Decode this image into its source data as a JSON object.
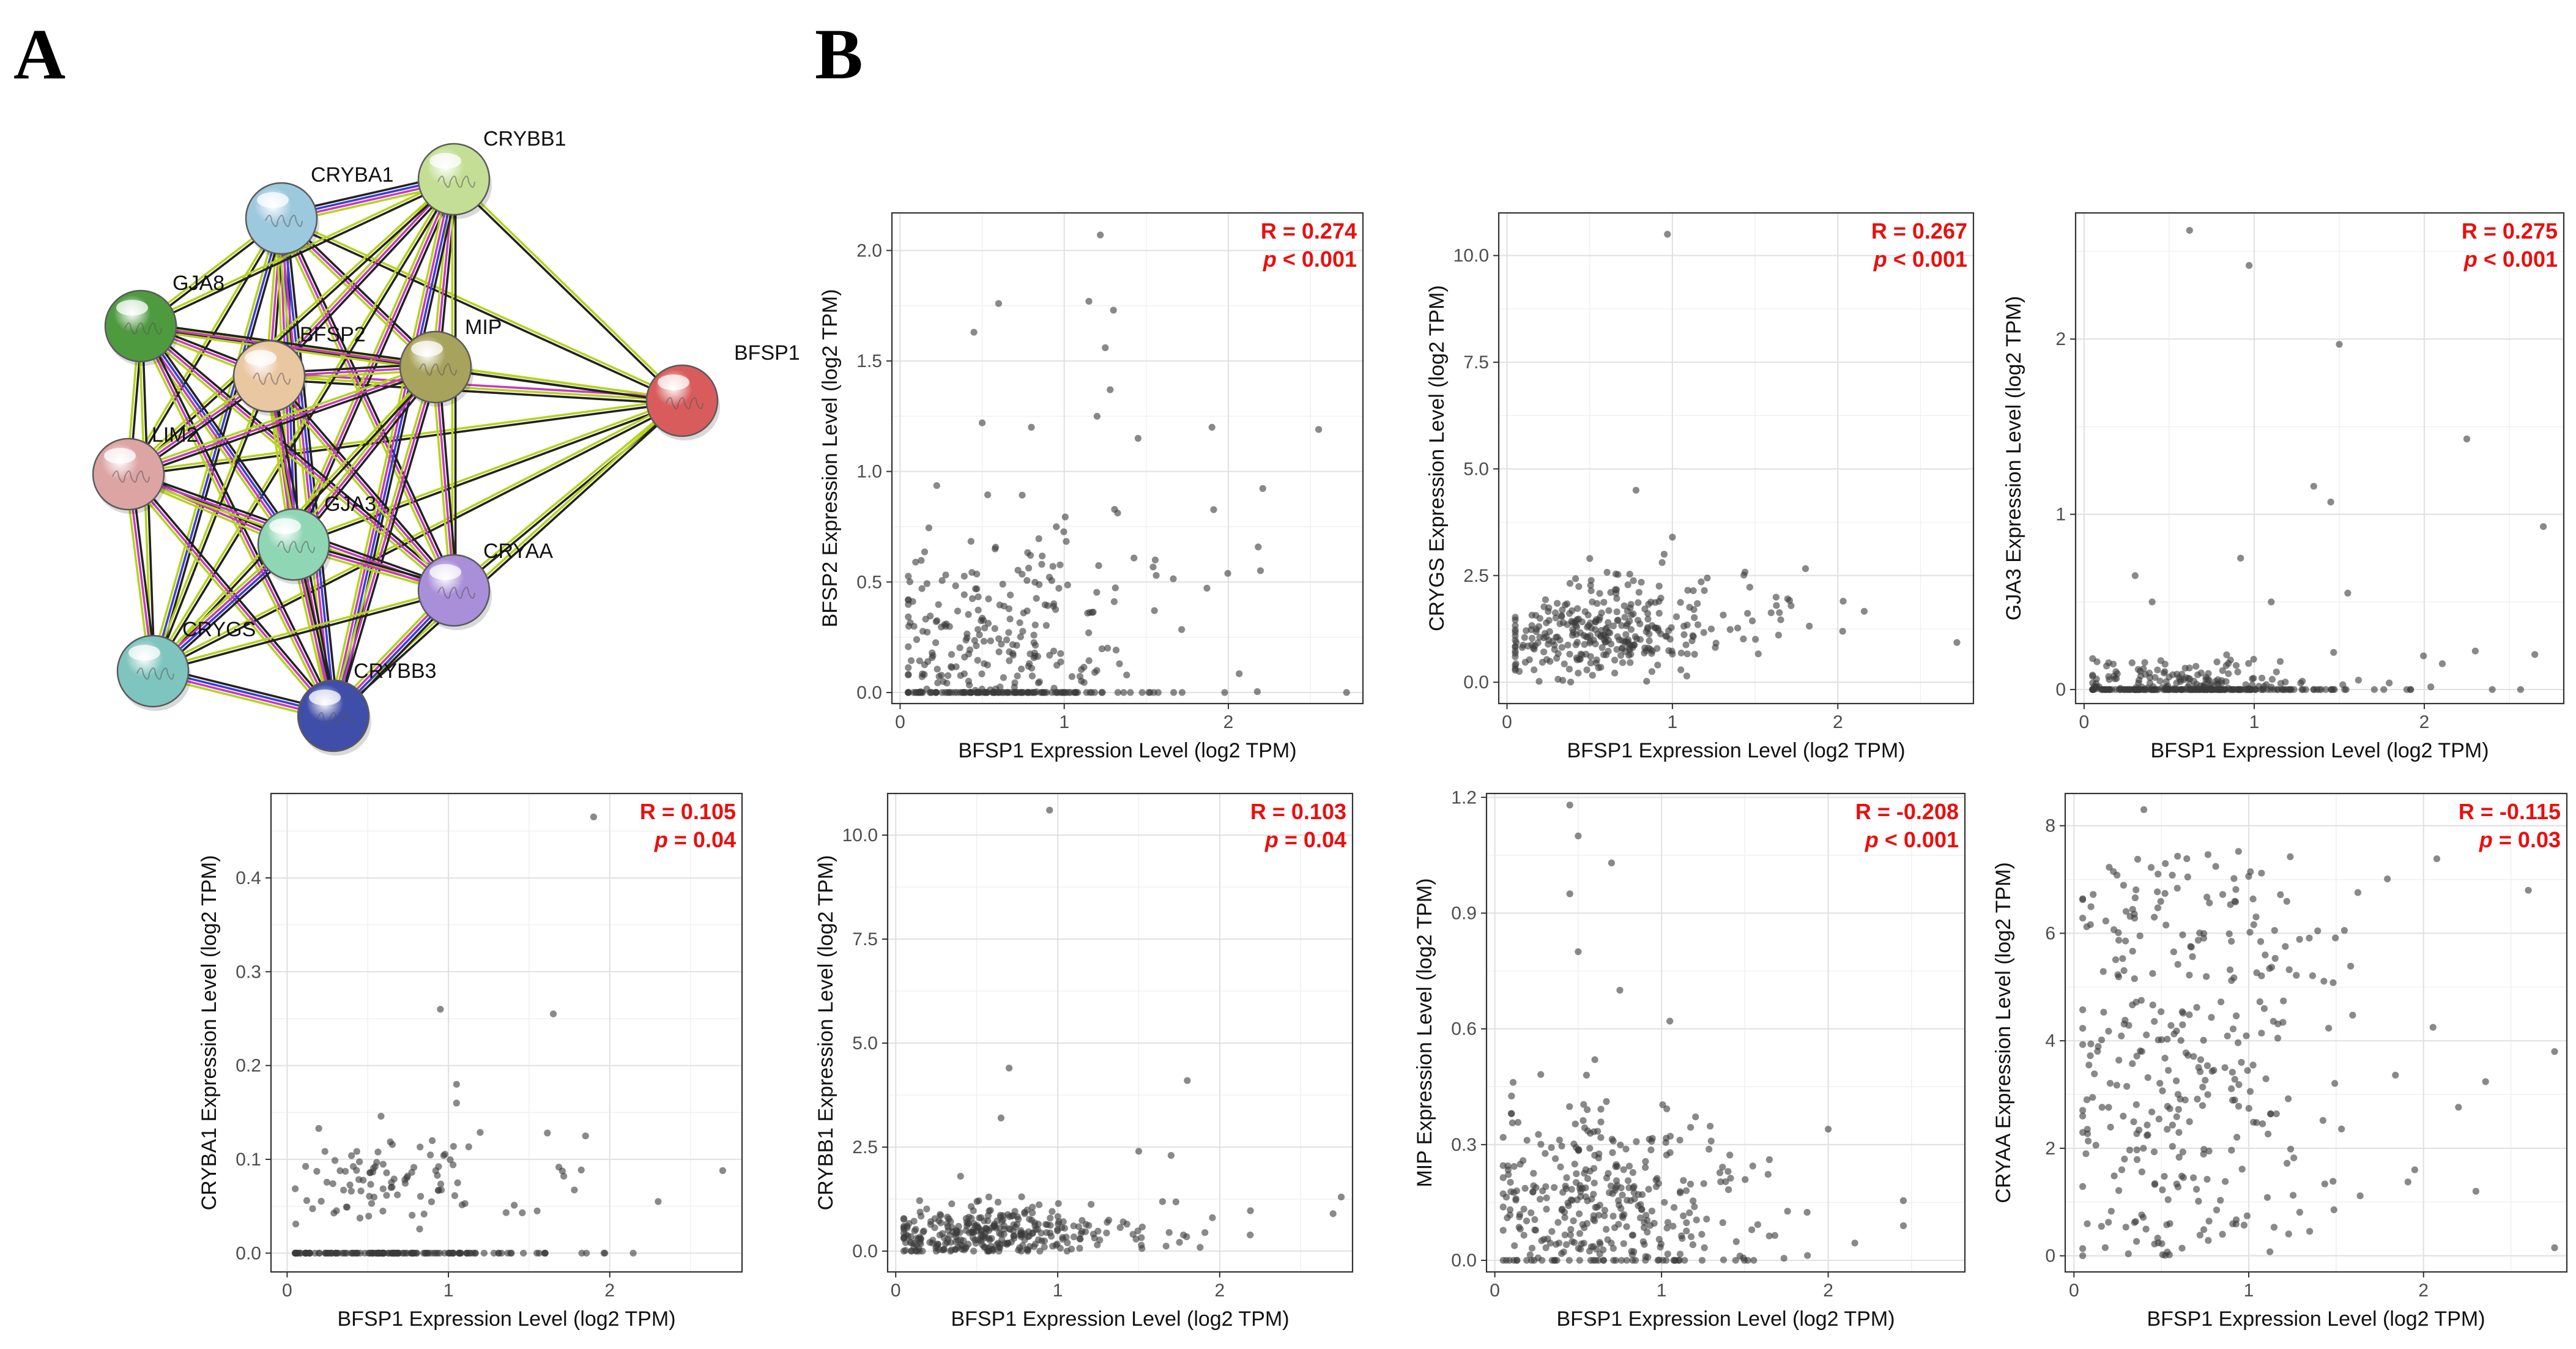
{
  "panels": {
    "a": "A",
    "b": "B"
  },
  "network": {
    "nodes": [
      {
        "id": "CRYBB1",
        "color": "#c4df95"
      },
      {
        "id": "CRYBA1",
        "color": "#9cc9de"
      },
      {
        "id": "GJA8",
        "color": "#4e9a3f"
      },
      {
        "id": "BFSP2",
        "color": "#e9c7a1"
      },
      {
        "id": "MIP",
        "color": "#a8a35c"
      },
      {
        "id": "BFSP1",
        "color": "#d95c5c"
      },
      {
        "id": "LIM2",
        "color": "#dda4a4"
      },
      {
        "id": "GJA3",
        "color": "#8fd6b5"
      },
      {
        "id": "CRYAA",
        "color": "#a98fd9"
      },
      {
        "id": "CRYGS",
        "color": "#7fc5bf"
      },
      {
        "id": "CRYBB3",
        "color": "#3f4ea8"
      }
    ],
    "edges": [
      {
        "s": "BFSP1",
        "t": "CRYBB1",
        "colors": [
          "#222222",
          "#b5d31c"
        ]
      },
      {
        "s": "BFSP1",
        "t": "CRYBA1",
        "colors": [
          "#222222",
          "#b5d31c"
        ]
      },
      {
        "s": "BFSP1",
        "t": "GJA8",
        "colors": [
          "#222222",
          "#b5d31c"
        ]
      },
      {
        "s": "BFSP1",
        "t": "BFSP2",
        "colors": [
          "#222222",
          "#b5d31c",
          "#c23ebf"
        ]
      },
      {
        "s": "BFSP1",
        "t": "MIP",
        "colors": [
          "#222222",
          "#b5d31c"
        ]
      },
      {
        "s": "BFSP1",
        "t": "LIM2",
        "colors": [
          "#222222",
          "#b5d31c"
        ]
      },
      {
        "s": "BFSP1",
        "t": "GJA3",
        "colors": [
          "#222222",
          "#b5d31c"
        ]
      },
      {
        "s": "BFSP1",
        "t": "CRYAA",
        "colors": [
          "#222222",
          "#b5d31c"
        ]
      },
      {
        "s": "BFSP1",
        "t": "CRYGS",
        "colors": [
          "#222222",
          "#b5d31c"
        ]
      },
      {
        "s": "BFSP1",
        "t": "CRYBB3",
        "colors": [
          "#222222",
          "#b5d31c"
        ]
      },
      {
        "s": "CRYBA1",
        "t": "CRYBB1",
        "colors": [
          "#222222",
          "#3d3dd6",
          "#c23ebf",
          "#b5d31c"
        ]
      },
      {
        "s": "CRYBA1",
        "t": "GJA8",
        "colors": [
          "#222222",
          "#b5d31c"
        ]
      },
      {
        "s": "CRYBA1",
        "t": "BFSP2",
        "colors": [
          "#222222",
          "#c23ebf",
          "#b5d31c"
        ]
      },
      {
        "s": "CRYBA1",
        "t": "MIP",
        "colors": [
          "#222222",
          "#c23ebf",
          "#b5d31c"
        ]
      },
      {
        "s": "CRYBA1",
        "t": "LIM2",
        "colors": [
          "#222222",
          "#b5d31c"
        ]
      },
      {
        "s": "CRYBA1",
        "t": "GJA3",
        "colors": [
          "#222222",
          "#3d3dd6",
          "#c23ebf",
          "#b5d31c"
        ]
      },
      {
        "s": "CRYBA1",
        "t": "CRYAA",
        "colors": [
          "#222222",
          "#c23ebf",
          "#b5d31c"
        ]
      },
      {
        "s": "CRYBA1",
        "t": "CRYGS",
        "colors": [
          "#222222",
          "#3d3dd6",
          "#b5d31c"
        ]
      },
      {
        "s": "CRYBA1",
        "t": "CRYBB3",
        "colors": [
          "#222222",
          "#3d3dd6",
          "#c23ebf",
          "#b5d31c"
        ]
      },
      {
        "s": "CRYBB1",
        "t": "GJA8",
        "colors": [
          "#222222",
          "#b5d31c"
        ]
      },
      {
        "s": "CRYBB1",
        "t": "BFSP2",
        "colors": [
          "#222222",
          "#c23ebf",
          "#b5d31c"
        ]
      },
      {
        "s": "CRYBB1",
        "t": "MIP",
        "colors": [
          "#222222",
          "#c23ebf",
          "#b5d31c"
        ]
      },
      {
        "s": "CRYBB1",
        "t": "LIM2",
        "colors": [
          "#222222",
          "#b5d31c"
        ]
      },
      {
        "s": "CRYBB1",
        "t": "GJA3",
        "colors": [
          "#222222",
          "#c23ebf",
          "#b5d31c"
        ]
      },
      {
        "s": "CRYBB1",
        "t": "CRYAA",
        "colors": [
          "#222222",
          "#b5d31c"
        ]
      },
      {
        "s": "CRYBB1",
        "t": "CRYGS",
        "colors": [
          "#222222",
          "#b5d31c"
        ]
      },
      {
        "s": "CRYBB1",
        "t": "CRYBB3",
        "colors": [
          "#222222",
          "#3d3dd6",
          "#c23ebf",
          "#b5d31c"
        ]
      },
      {
        "s": "GJA8",
        "t": "BFSP2",
        "colors": [
          "#222222",
          "#c23ebf",
          "#b5d31c"
        ]
      },
      {
        "s": "GJA8",
        "t": "MIP",
        "colors": [
          "#222222",
          "#c23ebf",
          "#b5d31c"
        ]
      },
      {
        "s": "GJA8",
        "t": "LIM2",
        "colors": [
          "#222222",
          "#b5d31c"
        ]
      },
      {
        "s": "GJA8",
        "t": "GJA3",
        "colors": [
          "#222222",
          "#3d3dd6",
          "#c23ebf",
          "#b5d31c"
        ]
      },
      {
        "s": "GJA8",
        "t": "CRYAA",
        "colors": [
          "#222222",
          "#c23ebf",
          "#b5d31c"
        ]
      },
      {
        "s": "GJA8",
        "t": "CRYGS",
        "colors": [
          "#222222",
          "#b5d31c"
        ]
      },
      {
        "s": "GJA8",
        "t": "CRYBB3",
        "colors": [
          "#222222",
          "#c23ebf",
          "#b5d31c"
        ]
      },
      {
        "s": "BFSP2",
        "t": "MIP",
        "colors": [
          "#222222",
          "#c23ebf",
          "#b5d31c"
        ]
      },
      {
        "s": "BFSP2",
        "t": "LIM2",
        "colors": [
          "#222222",
          "#c23ebf",
          "#b5d31c"
        ]
      },
      {
        "s": "BFSP2",
        "t": "GJA3",
        "colors": [
          "#222222",
          "#c23ebf",
          "#b5d31c"
        ]
      },
      {
        "s": "BFSP2",
        "t": "CRYAA",
        "colors": [
          "#222222",
          "#c23ebf",
          "#b5d31c"
        ]
      },
      {
        "s": "BFSP2",
        "t": "CRYGS",
        "colors": [
          "#222222",
          "#b5d31c"
        ]
      },
      {
        "s": "BFSP2",
        "t": "CRYBB3",
        "colors": [
          "#222222",
          "#c23ebf",
          "#b5d31c"
        ]
      },
      {
        "s": "MIP",
        "t": "LIM2",
        "colors": [
          "#222222",
          "#c23ebf",
          "#b5d31c"
        ]
      },
      {
        "s": "MIP",
        "t": "GJA3",
        "colors": [
          "#222222",
          "#c23ebf",
          "#b5d31c"
        ]
      },
      {
        "s": "MIP",
        "t": "CRYAA",
        "colors": [
          "#222222",
          "#c23ebf",
          "#b5d31c"
        ]
      },
      {
        "s": "MIP",
        "t": "CRYGS",
        "colors": [
          "#222222",
          "#b5d31c"
        ]
      },
      {
        "s": "MIP",
        "t": "CRYBB3",
        "colors": [
          "#222222",
          "#c23ebf",
          "#b5d31c"
        ]
      },
      {
        "s": "LIM2",
        "t": "GJA3",
        "colors": [
          "#222222",
          "#c23ebf",
          "#b5d31c"
        ]
      },
      {
        "s": "LIM2",
        "t": "CRYAA",
        "colors": [
          "#222222",
          "#c23ebf",
          "#b5d31c"
        ]
      },
      {
        "s": "LIM2",
        "t": "CRYGS",
        "colors": [
          "#222222",
          "#c23ebf",
          "#b5d31c"
        ]
      },
      {
        "s": "LIM2",
        "t": "CRYBB3",
        "colors": [
          "#222222",
          "#c23ebf",
          "#b5d31c"
        ]
      },
      {
        "s": "GJA3",
        "t": "CRYAA",
        "colors": [
          "#222222",
          "#c23ebf",
          "#b5d31c"
        ]
      },
      {
        "s": "GJA3",
        "t": "CRYGS",
        "colors": [
          "#222222",
          "#3d3dd6",
          "#c23ebf",
          "#b5d31c"
        ]
      },
      {
        "s": "GJA3",
        "t": "CRYBB3",
        "colors": [
          "#222222",
          "#c23ebf",
          "#b5d31c"
        ]
      },
      {
        "s": "CRYAA",
        "t": "CRYGS",
        "colors": [
          "#222222",
          "#b5d31c"
        ]
      },
      {
        "s": "CRYAA",
        "t": "CRYBB3",
        "colors": [
          "#222222",
          "#3d3dd6",
          "#c23ebf",
          "#b5d31c"
        ]
      },
      {
        "s": "CRYGS",
        "t": "CRYBB3",
        "colors": [
          "#222222",
          "#3d3dd6",
          "#c23ebf",
          "#b5d31c"
        ]
      }
    ]
  },
  "chart_data": [
    {
      "type": "scatter",
      "xlabel": "BFSP1 Expression Level (log2 TPM)",
      "ylabel": "BFSP2 Expression Level (log2 TPM)",
      "xlim": [
        -0.05,
        2.82
      ],
      "ylim": [
        -0.05,
        2.17
      ],
      "xticks": [
        0,
        1,
        2
      ],
      "xtick_labels": [
        "0",
        "1",
        "2"
      ],
      "yticks": [
        0,
        0.5,
        1,
        1.5,
        2
      ],
      "ytick_labels": [
        "0.0",
        "0.5",
        "1.0",
        "1.5",
        "2.0"
      ],
      "annot_r": "R = 0.274",
      "annot_p": "p < 0.001",
      "p_letter": "p",
      "p_rest": " < 0.001",
      "corr": 0.274,
      "ydist": "zinf",
      "ymean": 0.25,
      "yspread": 0.3,
      "n": 360,
      "zero_frac": 0.35,
      "seed": 11,
      "extras": [
        [
          1.22,
          2.07
        ],
        [
          0.6,
          1.76
        ],
        [
          0.45,
          1.63
        ],
        [
          1.15,
          1.77
        ],
        [
          1.3,
          1.73
        ],
        [
          1.25,
          1.56
        ],
        [
          1.28,
          1.37
        ],
        [
          0.5,
          1.22
        ],
        [
          0.8,
          1.2
        ],
        [
          2.55,
          1.19
        ],
        [
          1.2,
          1.25
        ],
        [
          1.45,
          1.15
        ],
        [
          1.9,
          1.2
        ]
      ]
    },
    {
      "type": "scatter",
      "xlabel": "BFSP1 Expression Level (log2 TPM)",
      "ylabel": "CRYGS Expression Level (log2 TPM)",
      "xlim": [
        -0.05,
        2.82
      ],
      "ylim": [
        -0.5,
        11.0
      ],
      "xticks": [
        0,
        1,
        2
      ],
      "xtick_labels": [
        "0",
        "1",
        "2"
      ],
      "yticks": [
        0,
        2.5,
        5,
        7.5,
        10
      ],
      "ytick_labels": [
        "0.0",
        "2.5",
        "5.0",
        "7.5",
        "10.0"
      ],
      "annot_r": "R = 0.267",
      "annot_p": "p < 0.001",
      "p_letter": "p",
      "p_rest": " < 0.001",
      "corr": 0.267,
      "ydist": "normal",
      "ymean": 1.2,
      "yspread": 0.55,
      "n": 330,
      "zero_frac": 0,
      "seed": 23,
      "extras": [
        [
          0.97,
          10.5
        ],
        [
          0.78,
          4.5
        ],
        [
          1.0,
          3.4
        ],
        [
          0.5,
          2.9
        ],
        [
          0.95,
          3.0
        ]
      ]
    },
    {
      "type": "scatter",
      "xlabel": "BFSP1 Expression Level (log2 TPM)",
      "ylabel": "GJA3 Expression Level (log2 TPM)",
      "xlim": [
        -0.05,
        2.82
      ],
      "ylim": [
        -0.08,
        2.72
      ],
      "xticks": [
        0,
        1,
        2
      ],
      "xtick_labels": [
        "0",
        "1",
        "2"
      ],
      "yticks": [
        0,
        1,
        2
      ],
      "ytick_labels": [
        "0",
        "1",
        "2"
      ],
      "annot_r": "R = 0.275",
      "annot_p": "p < 0.001",
      "p_letter": "p",
      "p_rest": " < 0.001",
      "corr": 0.275,
      "ydist": "zinf",
      "ymean": 0.06,
      "yspread": 0.06,
      "n": 330,
      "zero_frac": 0.6,
      "seed": 37,
      "extras": [
        [
          0.62,
          2.62
        ],
        [
          0.97,
          2.42
        ],
        [
          1.5,
          1.97
        ],
        [
          2.25,
          1.43
        ],
        [
          1.35,
          1.16
        ],
        [
          1.45,
          1.07
        ],
        [
          2.7,
          0.93
        ],
        [
          0.92,
          0.75
        ],
        [
          0.3,
          0.65
        ],
        [
          1.55,
          0.55
        ],
        [
          1.1,
          0.5
        ],
        [
          0.4,
          0.5
        ],
        [
          2.3,
          0.22
        ],
        [
          2.65,
          0.2
        ]
      ]
    },
    {
      "type": "scatter",
      "xlabel": "BFSP1 Expression Level (log2 TPM)",
      "ylabel": "CRYBA1 Expression Level (log2 TPM)",
      "xlim": [
        -0.1,
        2.82
      ],
      "ylim": [
        -0.02,
        0.49
      ],
      "xticks": [
        0,
        1,
        2
      ],
      "xtick_labels": [
        "0",
        "1",
        "2"
      ],
      "yticks": [
        0,
        0.1,
        0.2,
        0.3,
        0.4
      ],
      "ytick_labels": [
        "0.0",
        "0.1",
        "0.2",
        "0.3",
        "0.4"
      ],
      "annot_r": "R = 0.105",
      "annot_p": "p = 0.04",
      "p_letter": "p",
      "p_rest": " = 0.04",
      "corr": 0.105,
      "ydist": "zinf",
      "ymean": 0.08,
      "yspread": 0.025,
      "n": 250,
      "zero_frac": 0.62,
      "seed": 41,
      "extras": [
        [
          1.9,
          0.465
        ],
        [
          0.95,
          0.26
        ],
        [
          1.65,
          0.255
        ],
        [
          1.05,
          0.18
        ],
        [
          1.05,
          0.16
        ],
        [
          1.85,
          0.125
        ],
        [
          2.7,
          0.088
        ],
        [
          2.3,
          0.055
        ],
        [
          1.55,
          0.045
        ]
      ]
    },
    {
      "type": "scatter",
      "xlabel": "BFSP1 Expression Level (log2 TPM)",
      "ylabel": "CRYBB1 Expression Level (log2 TPM)",
      "xlim": [
        -0.05,
        2.82
      ],
      "ylim": [
        -0.5,
        11.0
      ],
      "xticks": [
        0,
        1,
        2
      ],
      "xtick_labels": [
        "0",
        "1",
        "2"
      ],
      "yticks": [
        0,
        2.5,
        5,
        7.5,
        10
      ],
      "ytick_labels": [
        "0.0",
        "2.5",
        "5.0",
        "7.5",
        "10.0"
      ],
      "annot_r": "R = 0.103",
      "annot_p": "p = 0.04",
      "p_letter": "p",
      "p_rest": " = 0.04",
      "corr": 0.103,
      "ydist": "zinf",
      "ymean": 0.45,
      "yspread": 0.35,
      "n": 330,
      "zero_frac": 0.05,
      "seed": 53,
      "extras": [
        [
          0.95,
          10.6
        ],
        [
          0.7,
          4.4
        ],
        [
          0.65,
          3.2
        ],
        [
          1.8,
          4.1
        ],
        [
          1.5,
          2.4
        ],
        [
          1.7,
          2.3
        ],
        [
          0.4,
          1.8
        ],
        [
          2.75,
          1.3
        ],
        [
          2.7,
          0.9
        ]
      ]
    },
    {
      "type": "scatter",
      "xlabel": "BFSP1 Expression Level (log2 TPM)",
      "ylabel": "MIP Expression Level (log2 TPM)",
      "xlim": [
        -0.05,
        2.82
      ],
      "ylim": [
        -0.03,
        1.21
      ],
      "xticks": [
        0,
        1,
        2
      ],
      "xtick_labels": [
        "0",
        "1",
        "2"
      ],
      "yticks": [
        0,
        0.3,
        0.6,
        0.9,
        1.2
      ],
      "ytick_labels": [
        "0.0",
        "0.3",
        "0.6",
        "0.9",
        "1.2"
      ],
      "annot_r": "R = -0.208",
      "annot_p": "p < 0.001",
      "p_letter": "p",
      "p_rest": " < 0.001",
      "corr": -0.208,
      "ydist": "zinf",
      "ymean": 0.14,
      "yspread": 0.12,
      "n": 360,
      "zero_frac": 0.08,
      "seed": 67,
      "extras": [
        [
          0.45,
          1.18
        ],
        [
          0.5,
          1.1
        ],
        [
          0.7,
          1.03
        ],
        [
          0.45,
          0.95
        ],
        [
          0.5,
          0.8
        ],
        [
          0.75,
          0.7
        ],
        [
          1.05,
          0.62
        ],
        [
          0.6,
          0.52
        ],
        [
          0.55,
          0.48
        ],
        [
          2.0,
          0.34
        ],
        [
          0.1,
          0.38
        ]
      ]
    },
    {
      "type": "scatter",
      "xlabel": "BFSP1 Expression Level (log2 TPM)",
      "ylabel": "CRYAA Expression Level (log2 TPM)",
      "xlim": [
        -0.05,
        2.82
      ],
      "ylim": [
        -0.3,
        8.6
      ],
      "xticks": [
        0,
        1,
        2
      ],
      "xtick_labels": [
        "0",
        "1",
        "2"
      ],
      "yticks": [
        0,
        2,
        4,
        6,
        8
      ],
      "ytick_labels": [
        "0",
        "2",
        "4",
        "6",
        "8"
      ],
      "annot_r": "R = -0.115",
      "annot_p": "p = 0.03",
      "p_letter": "p",
      "p_rest": " = 0.03",
      "corr": -0.115,
      "ydist": "uniform",
      "ymean": 3.5,
      "yspread": 3.0,
      "n": 340,
      "zero_frac": 0,
      "seed": 79,
      "extras": [
        [
          0.4,
          8.3
        ],
        [
          2.6,
          6.8
        ],
        [
          2.75,
          3.8
        ],
        [
          1.95,
          1.6
        ],
        [
          2.3,
          1.2
        ],
        [
          2.75,
          0.15
        ]
      ]
    }
  ]
}
